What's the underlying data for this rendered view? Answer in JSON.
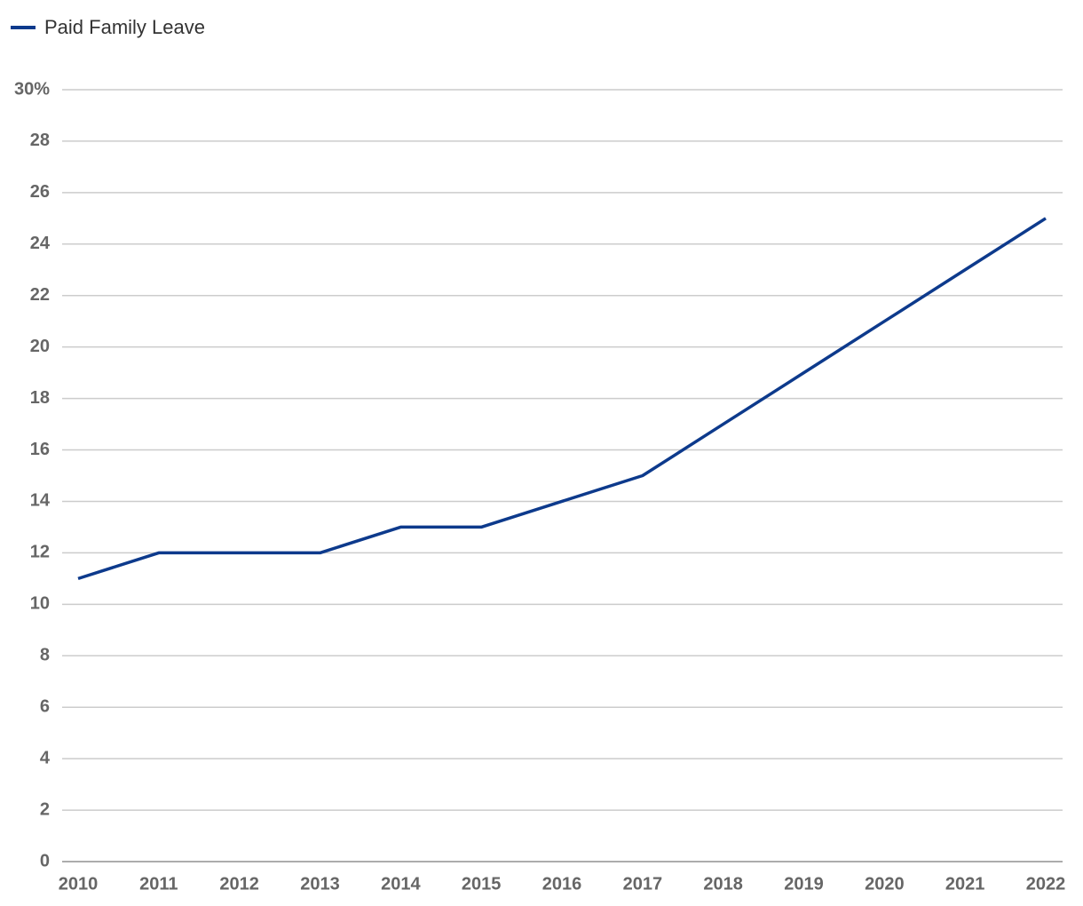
{
  "chart_data": {
    "type": "line",
    "categories": [
      "2010",
      "2011",
      "2012",
      "2013",
      "2014",
      "2015",
      "2016",
      "2017",
      "2018",
      "2019",
      "2020",
      "2021",
      "2022"
    ],
    "series": [
      {
        "name": "Paid Family Leave",
        "color": "#0d3a8c",
        "values": [
          11,
          12,
          12,
          12,
          13,
          13,
          14,
          15,
          17,
          19,
          21,
          23,
          25
        ]
      }
    ],
    "ylim": [
      0,
      30
    ],
    "yticks": [
      0,
      2,
      4,
      6,
      8,
      10,
      12,
      14,
      16,
      18,
      20,
      22,
      24,
      26,
      28,
      {
        "value": 30,
        "label": "30%"
      }
    ],
    "grid": true,
    "legend": "top-left"
  }
}
